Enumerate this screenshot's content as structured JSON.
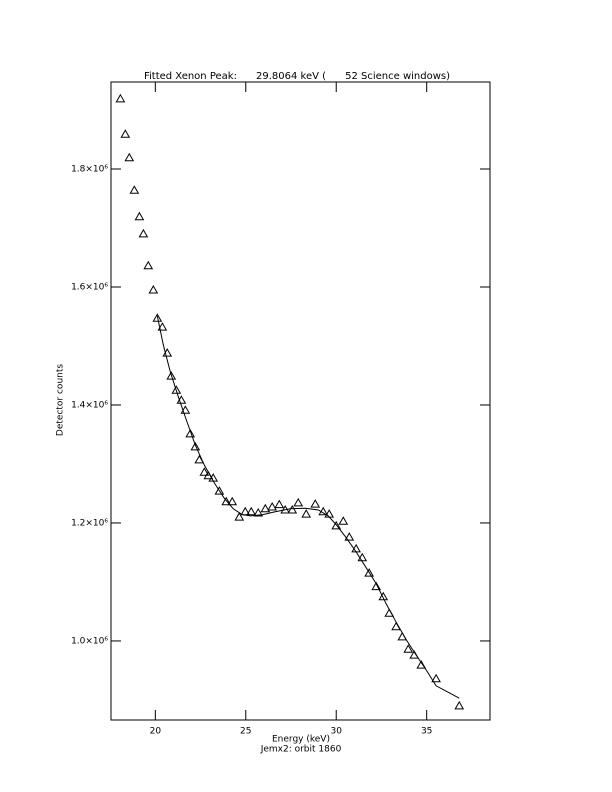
{
  "chart_data": {
    "type": "scatter",
    "title": "Fitted Xenon Peak:      29.8064 keV (      52 Science windows)",
    "x_label": "Energy (keV)",
    "y_label": "Detector counts",
    "footer": "Jemx2: orbit 1860",
    "xlim": [
      17.55,
      38.5
    ],
    "ylim": [
      866000,
      1947500
    ],
    "xticks": [
      20,
      25,
      30,
      35
    ],
    "yticks": [
      {
        "value": 1000000,
        "label": "1.0×10⁶"
      },
      {
        "value": 1200000,
        "label": "1.2×10⁶"
      },
      {
        "value": 1400000,
        "label": "1.4×10⁶"
      },
      {
        "value": 1600000,
        "label": "1.6×10⁶"
      },
      {
        "value": 1800000,
        "label": "1.8×10⁶"
      }
    ],
    "series": [
      {
        "type": "scatter",
        "color": "#000000",
        "x": [
          18.07,
          18.34,
          18.56,
          18.84,
          19.12,
          19.34,
          19.61,
          19.89,
          20.11,
          20.39,
          20.66,
          20.88,
          21.16,
          21.44,
          21.66,
          21.93,
          22.21,
          22.43,
          22.71,
          22.93,
          23.2,
          23.54,
          23.92,
          24.25,
          24.64,
          24.97,
          25.3,
          25.69,
          26.08,
          26.46,
          26.85,
          27.18,
          27.57,
          27.9,
          28.34,
          28.84,
          29.28,
          29.61,
          30.0,
          30.39,
          30.72,
          31.1,
          31.44,
          31.82,
          32.21,
          32.6,
          32.93,
          33.31,
          33.65,
          33.98,
          34.31,
          34.7,
          35.52,
          36.8
        ],
        "values": [
          1919000,
          1859000,
          1819000,
          1764000,
          1719000,
          1690000,
          1636000,
          1595000,
          1547000,
          1532000,
          1488000,
          1449000,
          1425000,
          1408000,
          1391000,
          1351000,
          1329000,
          1307000,
          1286000,
          1280000,
          1276000,
          1254000,
          1236000,
          1236000,
          1210000,
          1219000,
          1219000,
          1217000,
          1224000,
          1227000,
          1231000,
          1222000,
          1222000,
          1234000,
          1215000,
          1232000,
          1219000,
          1215000,
          1195000,
          1203000,
          1176000,
          1156000,
          1141000,
          1115000,
          1092000,
          1075000,
          1047000,
          1024000,
          1007000,
          986000,
          976000,
          959000,
          936000,
          890000
        ]
      },
      {
        "type": "line",
        "color": "#000000",
        "x": [
          20.11,
          20.44,
          20.83,
          21.27,
          21.71,
          22.21,
          22.71,
          23.26,
          23.81,
          24.31,
          24.81,
          25.25,
          25.91,
          26.63,
          27.46,
          28.29,
          29.01,
          29.56,
          30.0,
          30.55,
          31.1,
          31.66,
          32.21,
          32.76,
          33.31,
          33.87,
          34.42,
          34.97,
          35.52,
          36.8
        ],
        "values": [
          1551000,
          1502000,
          1456000,
          1414000,
          1375000,
          1332000,
          1298000,
          1268000,
          1242000,
          1224000,
          1214000,
          1212000,
          1214000,
          1219000,
          1224000,
          1225000,
          1222000,
          1212000,
          1197000,
          1175000,
          1151000,
          1124000,
          1097000,
          1063000,
          1032000,
          1002000,
          976000,
          951000,
          924000,
          903000
        ]
      }
    ]
  }
}
